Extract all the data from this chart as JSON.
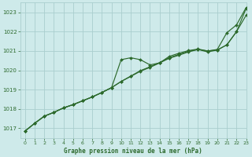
{
  "title": "Graphe pression niveau de la mer (hPa)",
  "bg_color": "#ceeaea",
  "grid_color": "#aacece",
  "line_color": "#2d6a2d",
  "marker_color": "#2d6a2d",
  "xlim": [
    -0.5,
    23
  ],
  "ylim": [
    1016.5,
    1023.5
  ],
  "yticks": [
    1017,
    1018,
    1019,
    1020,
    1021,
    1022,
    1023
  ],
  "xticks": [
    0,
    1,
    2,
    3,
    4,
    5,
    6,
    7,
    8,
    9,
    10,
    11,
    12,
    13,
    14,
    15,
    16,
    17,
    18,
    19,
    20,
    21,
    22,
    23
  ],
  "series": [
    [
      1016.85,
      1017.25,
      1017.62,
      1017.82,
      1018.05,
      1018.22,
      1018.42,
      1018.62,
      1018.85,
      1019.1,
      1019.42,
      1019.68,
      1019.95,
      1020.15,
      1020.38,
      1020.62,
      1020.78,
      1020.95,
      1021.08,
      1020.95,
      1021.05,
      1021.32,
      1022.0,
      1022.85
    ],
    [
      1016.85,
      1017.25,
      1017.62,
      1017.82,
      1018.05,
      1018.22,
      1018.42,
      1018.62,
      1018.85,
      1019.1,
      1020.55,
      1020.65,
      1020.55,
      1020.28,
      1020.38,
      1020.72,
      1020.88,
      1021.02,
      1021.1,
      1021.0,
      1021.05,
      1021.32,
      1022.0,
      1023.2
    ],
    [
      1016.85,
      1017.25,
      1017.62,
      1017.82,
      1018.05,
      1018.22,
      1018.42,
      1018.62,
      1018.85,
      1019.1,
      1019.42,
      1019.7,
      1019.98,
      1020.18,
      1020.4,
      1020.65,
      1020.82,
      1020.98,
      1021.08,
      1021.0,
      1021.08,
      1021.95,
      1022.35,
      1023.25
    ]
  ]
}
